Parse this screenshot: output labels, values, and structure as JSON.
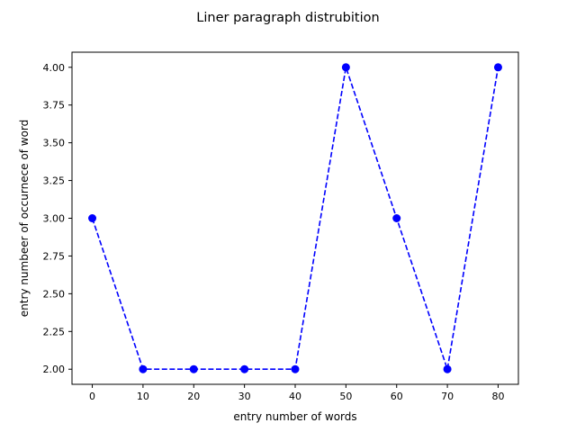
{
  "chart_data": {
    "type": "line",
    "title": "Liner paragraph distrubition",
    "xlabel": "entry number of words",
    "ylabel": "entry numbeer of occurnece of word",
    "xlim": [
      -4,
      84
    ],
    "ylim": [
      1.9,
      4.1
    ],
    "xticks": [
      0,
      10,
      20,
      30,
      40,
      50,
      60,
      70,
      80
    ],
    "yticks": [
      2.0,
      2.25,
      2.5,
      2.75,
      3.0,
      3.25,
      3.5,
      3.75,
      4.0
    ],
    "xtick_labels": [
      "0",
      "10",
      "20",
      "30",
      "40",
      "50",
      "60",
      "70",
      "80"
    ],
    "ytick_labels": [
      "2.00",
      "2.25",
      "2.50",
      "2.75",
      "3.00",
      "3.25",
      "3.50",
      "3.75",
      "4.00"
    ],
    "grid": false,
    "series": [
      {
        "x": [
          0,
          10,
          20,
          30,
          40,
          50,
          60,
          70,
          80
        ],
        "y": [
          3,
          2,
          2,
          2,
          2,
          4,
          3,
          2,
          4
        ],
        "color": "#0000ff",
        "line_style": "dashed",
        "marker": "circle"
      }
    ]
  }
}
